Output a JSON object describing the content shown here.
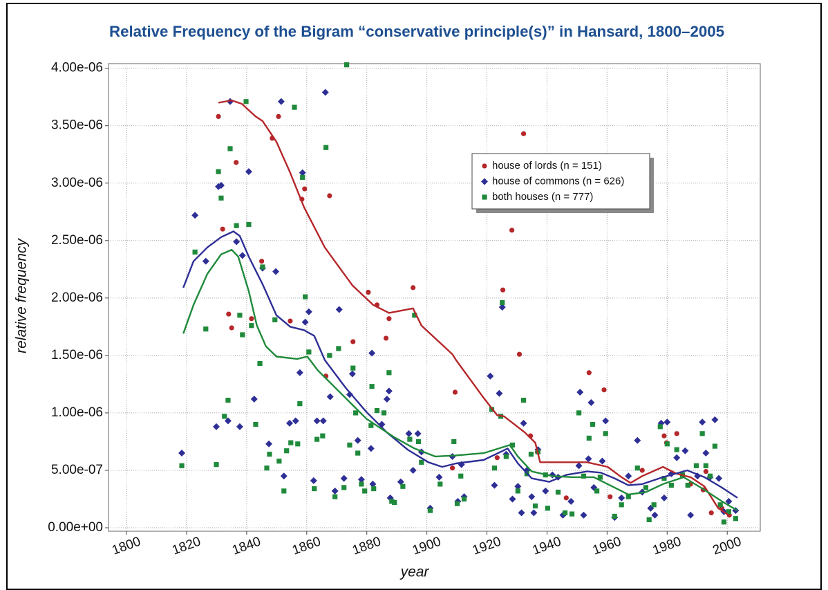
{
  "chart_data": {
    "type": "scatter",
    "title": "Relative Frequency of the Bigram “conservative principle(s)” in Hansard, 1800–2005",
    "xlabel": "year",
    "ylabel": "relative frequency",
    "xlim": [
      1794,
      2011
    ],
    "ylim": [
      -3e-08,
      4.04e-06
    ],
    "xticks": [
      1800,
      1820,
      1840,
      1860,
      1880,
      1900,
      1920,
      1940,
      1960,
      1980,
      2000
    ],
    "yticks": [
      {
        "value": 0,
        "label": "0.00e+00"
      },
      {
        "value": 5e-07,
        "label": "5.00e-07"
      },
      {
        "value": 1e-06,
        "label": "1.00e-06"
      },
      {
        "value": 1.5e-06,
        "label": "1.50e-06"
      },
      {
        "value": 2e-06,
        "label": "2.00e-06"
      },
      {
        "value": 2.5e-06,
        "label": "2.50e-06"
      },
      {
        "value": 3e-06,
        "label": "3.00e-06"
      },
      {
        "value": 3.5e-06,
        "label": "3.50e-06"
      },
      {
        "value": 4e-06,
        "label": "4.00e-06"
      }
    ],
    "grid": true,
    "series": [
      {
        "name": "house of lords (n = 151)",
        "color": "#b5272a",
        "marker": "circle",
        "x": [
          1830.6,
          1832,
          1834,
          1835,
          1836.5,
          1841.6,
          1845,
          1848.5,
          1850.6,
          1854.5,
          1858.4,
          1859.3,
          1866.4,
          1867.6,
          1875.4,
          1880.5,
          1883.4,
          1886.4,
          1887.4,
          1895.4,
          1908.5,
          1909.4,
          1923.4,
          1925.3,
          1928.3,
          1930.8,
          1932.2,
          1934.5,
          1936.8,
          1946.4,
          1954,
          1959,
          1961,
          1971.7,
          1979,
          1979.8,
          1983.2,
          1987.8,
          1992,
          1992.9,
          1994.7,
          1998.2,
          2000.7
        ],
        "values": [
          3.58e-06,
          2.6e-06,
          1.86e-06,
          1.74e-06,
          3.18e-06,
          1.82e-06,
          2.32e-06,
          3.39e-06,
          3.58e-06,
          1.8e-06,
          2.86e-06,
          2.95e-06,
          1.32e-06,
          2.89e-06,
          1.62e-06,
          2.05e-06,
          1.94e-06,
          1.65e-06,
          1.82e-06,
          2.09e-06,
          5.2e-07,
          1.18e-06,
          6.1e-07,
          2.07e-06,
          2.59e-06,
          1.51e-06,
          3.43e-06,
          8e-07,
          6.6e-07,
          2.6e-07,
          1.35e-06,
          1.2e-06,
          2.7e-07,
          5e-07,
          8e-07,
          7.4e-07,
          8.2e-07,
          3.8e-07,
          3.3e-07,
          4.9e-07,
          1.3e-07,
          1.7e-07,
          1.1e-07
        ],
        "trend": {
          "x": [
            1830.6,
            1835,
            1838.4,
            1843,
            1845.3,
            1849.9,
            1854.5,
            1859.1,
            1866,
            1875.2,
            1882.1,
            1887.4,
            1895.4,
            1898.2,
            1908.5,
            1909.7,
            1918.9,
            1923.4,
            1925.7,
            1932.6,
            1936.1,
            1937.7,
            1941.8,
            1953.3,
            1960.2,
            1964.8,
            1967.8,
            1971.7,
            1978.6,
            1983.2,
            1987.8,
            1992.4,
            1997,
            2000.5
          ],
          "values": [
            3.7e-06,
            3.72e-06,
            3.69e-06,
            3.58e-06,
            3.54e-06,
            3.36e-06,
            3.09e-06,
            2.79e-06,
            2.44e-06,
            2.11e-06,
            1.94e-06,
            1.87e-06,
            1.91e-06,
            1.76e-06,
            1.51e-06,
            1.46e-06,
            1.13e-06,
            9.8e-07,
            9.7e-07,
            8.3e-07,
            7.4e-07,
            5.7e-07,
            5.7e-07,
            5.7e-07,
            5.3e-07,
            4.4e-07,
            3.9e-07,
            4.5e-07,
            5.3e-07,
            4.7e-07,
            4.4e-07,
            3.6e-07,
            1.7e-07,
            1.1e-07
          ]
        }
      },
      {
        "name": "house of commons (n = 626)",
        "color": "#2e2f95",
        "marker": "diamond",
        "x": [
          1818.4,
          1822.8,
          1826.4,
          1829.9,
          1830.6,
          1831.5,
          1833.8,
          1834.5,
          1836.6,
          1837.7,
          1838.6,
          1840.7,
          1842.5,
          1845.3,
          1847.4,
          1849.7,
          1851.5,
          1852.4,
          1854.3,
          1856.3,
          1857.7,
          1858.6,
          1859.5,
          1860.7,
          1862.3,
          1863.4,
          1865.5,
          1866.2,
          1867.8,
          1869.4,
          1870.8,
          1872.4,
          1874.3,
          1875.2,
          1877.0,
          1878.2,
          1881.4,
          1881.7,
          1882,
          1885,
          1886.7,
          1887.4,
          1887.8,
          1891.3,
          1894,
          1895.4,
          1897,
          1898.2,
          1901.1,
          1904.1,
          1908.5,
          1910.3,
          1911.5,
          1912.4,
          1921.1,
          1922.5,
          1924.1,
          1925.1,
          1926.4,
          1928.5,
          1930.3,
          1931.5,
          1932.2,
          1933.3,
          1934.9,
          1935.6,
          1937,
          1939.5,
          1941.8,
          1943.7,
          1945.3,
          1948,
          1950.6,
          1951,
          1952.2,
          1953.8,
          1954.7,
          1955.6,
          1958.4,
          1959.5,
          1962.5,
          1964.8,
          1967.1,
          1970.1,
          1971.7,
          1974.5,
          1975.9,
          1978,
          1979,
          1980,
          1981.4,
          1983.2,
          1986,
          1987.8,
          1990.1,
          1991.7,
          1992.9,
          1994.3,
          1995.9,
          1997.2,
          1998.9,
          2000.5,
          2002.8
        ],
        "values": [
          6.5e-07,
          2.72e-06,
          2.32e-06,
          8.8e-07,
          2.97e-06,
          2.98e-06,
          9.3e-07,
          3.71e-06,
          2.49e-06,
          8.8e-07,
          2.37e-06,
          3.1e-06,
          1.12e-06,
          2.26e-06,
          7.3e-07,
          2.23e-06,
          3.71e-06,
          4.5e-07,
          9.1e-07,
          9.3e-07,
          1.35e-06,
          3.09e-06,
          1.79e-06,
          1.88e-06,
          4.1e-07,
          9.3e-07,
          9.3e-07,
          3.79e-06,
          1.14e-06,
          3.2e-07,
          1.9e-06,
          4.3e-07,
          1.16e-06,
          1.34e-06,
          7.6e-07,
          4.2e-07,
          6.9e-07,
          1.52e-06,
          3.8e-07,
          9e-07,
          1.12e-06,
          1.19e-06,
          2.6e-07,
          4e-07,
          8.2e-07,
          5e-07,
          8.2e-07,
          6.6e-07,
          1.7e-07,
          4.4e-07,
          6.2e-07,
          2.3e-07,
          5.5e-07,
          2.7e-07,
          1.32e-06,
          3.7e-07,
          1.17e-06,
          1.92e-06,
          6.4e-07,
          2.5e-07,
          3.6e-07,
          1.3e-07,
          9.1e-07,
          5e-07,
          2.7e-07,
          1.3e-07,
          6.8e-07,
          3.2e-07,
          4.6e-07,
          4.4e-07,
          1.1e-07,
          2.3e-07,
          5.4e-07,
          1.18e-06,
          1.1e-07,
          6e-07,
          1.09e-06,
          3.5e-07,
          5.8e-07,
          9.3e-07,
          9e-08,
          2.6e-07,
          4.5e-07,
          7.6e-07,
          3.1e-07,
          1.7e-07,
          1.1e-07,
          9.1e-07,
          2.6e-07,
          9.2e-07,
          4.7e-07,
          6.1e-07,
          6.7e-07,
          1.1e-07,
          4.5e-07,
          9.2e-07,
          6.5e-07,
          4.4e-07,
          9.4e-07,
          4.3e-07,
          1.4e-07,
          2.3e-07,
          1.5e-07
        ],
        "trend": {
          "x": [
            1818.9,
            1822.3,
            1826.9,
            1831.5,
            1835.6,
            1837.7,
            1840.7,
            1845.3,
            1849.9,
            1854.5,
            1859.1,
            1862.5,
            1866,
            1872.9,
            1879.8,
            1886.7,
            1893.6,
            1900.5,
            1905.1,
            1909.7,
            1918.9,
            1926.9,
            1930.3,
            1934.9,
            1940.7,
            1946.4,
            1953.3,
            1957.9,
            1962.5,
            1967.1,
            1971.7,
            1978.6,
            1986.7,
            1992.4,
            1998.2,
            2003.4
          ],
          "values": [
            2.09e-06,
            2.32e-06,
            2.44e-06,
            2.53e-06,
            2.58e-06,
            2.54e-06,
            2.36e-06,
            2.12e-06,
            1.85e-06,
            1.75e-06,
            1.72e-06,
            1.67e-06,
            1.46e-06,
            1.22e-06,
            1.01e-06,
            8.3e-07,
            6.8e-07,
            5.7e-07,
            5.3e-07,
            5.6e-07,
            5.9e-07,
            6.9e-07,
            5.6e-07,
            4.3e-07,
            4e-07,
            4.6e-07,
            4.9e-07,
            4.8e-07,
            4.3e-07,
            3.7e-07,
            3.8e-07,
            4.4e-07,
            5e-07,
            4.4e-07,
            3.5e-07,
            2.6e-07
          ]
        }
      },
      {
        "name": "both houses (n = 777)",
        "color": "#1f8a3b",
        "marker": "square",
        "x": [
          1818.4,
          1822.8,
          1826.4,
          1829.9,
          1830.6,
          1831.5,
          1832.6,
          1833.8,
          1834.5,
          1836.6,
          1837.7,
          1838.6,
          1839.8,
          1840.7,
          1841.6,
          1843,
          1844.4,
          1845.3,
          1846.7,
          1847.6,
          1849.4,
          1850.8,
          1852.4,
          1853.3,
          1854.7,
          1855.9,
          1857,
          1857.7,
          1858.6,
          1859.5,
          1860.7,
          1862.5,
          1863.4,
          1865.3,
          1866.4,
          1867.6,
          1869.4,
          1870.6,
          1872.4,
          1873.3,
          1874.3,
          1875.4,
          1876.3,
          1877,
          1878.2,
          1879.3,
          1881.4,
          1881.7,
          1882.3,
          1883.4,
          1885.7,
          1887.4,
          1888.3,
          1889.2,
          1892,
          1894.3,
          1895.9,
          1897.2,
          1898.2,
          1901.1,
          1904.4,
          1909,
          1910.1,
          1911.3,
          1912.4,
          1921.6,
          1922.5,
          1924.6,
          1925.1,
          1926.4,
          1928.5,
          1930.3,
          1932.2,
          1933.3,
          1934.7,
          1936.1,
          1937,
          1939.5,
          1940.2,
          1943.7,
          1946,
          1948.3,
          1950.6,
          1952.2,
          1954,
          1955.2,
          1956.6,
          1957.7,
          1959.5,
          1962.5,
          1964.8,
          1967.1,
          1970.1,
          1972.9,
          1974,
          1975.6,
          1977.7,
          1979,
          1980,
          1981.4,
          1983.2,
          1985.1,
          1986.9,
          1989.7,
          1991.7,
          1992.9,
          1994.3,
          1995.9,
          1997.7,
          1998.9,
          2000.5,
          2002.8
        ],
        "values": [
          5.4e-07,
          2.4e-06,
          1.73e-06,
          5.5e-07,
          3.1e-06,
          2.87e-06,
          9.7e-07,
          1.11e-06,
          3.3e-06,
          2.63e-06,
          1.85e-06,
          1.68e-06,
          3.71e-06,
          2.64e-06,
          1.76e-06,
          9e-07,
          1.43e-06,
          2.27e-06,
          5.2e-07,
          6.4e-07,
          1.81e-06,
          5.8e-07,
          3.2e-07,
          6.7e-07,
          7.4e-07,
          3.66e-06,
          7.3e-07,
          1.08e-06,
          3.05e-06,
          2.01e-06,
          1.53e-06,
          3.4e-07,
          7.7e-07,
          8e-07,
          3.31e-06,
          1.5e-06,
          2.7e-07,
          1.56e-06,
          3.5e-07,
          4.03e-06,
          7.2e-07,
          1.39e-06,
          1e-06,
          6.5e-07,
          3.8e-07,
          3.2e-07,
          8.9e-07,
          1.23e-06,
          3.4e-07,
          1.02e-06,
          1e-06,
          1.35e-06,
          2.3e-07,
          2.2e-07,
          3.6e-07,
          7.7e-07,
          1.85e-06,
          7.5e-07,
          5.7e-07,
          1.5e-07,
          3.8e-07,
          7.5e-07,
          2.1e-07,
          4.5e-07,
          2.5e-07,
          1.03e-06,
          5.2e-07,
          9.7e-07,
          1.96e-06,
          6.2e-07,
          7.2e-07,
          3.2e-07,
          1.11e-06,
          4.7e-07,
          6.4e-07,
          1.9e-07,
          6.6e-07,
          4.6e-07,
          1.7e-07,
          3.1e-07,
          1.3e-07,
          1.2e-07,
          1e-06,
          4.5e-07,
          7.8e-07,
          9e-07,
          3.2e-07,
          4.4e-07,
          8.2e-07,
          1e-07,
          2e-07,
          2.7e-07,
          5.2e-07,
          3.5e-07,
          7e-08,
          2e-07,
          8.8e-07,
          4.3e-07,
          7.3e-07,
          3.7e-07,
          6.8e-07,
          4.6e-07,
          3.7e-07,
          5.4e-07,
          8.2e-07,
          5.4e-07,
          4.5e-07,
          7.1e-07,
          2e-07,
          5e-08,
          1.4e-07,
          8e-08
        ],
        "trend": {
          "x": [
            1818.9,
            1822.3,
            1826.9,
            1831.5,
            1835,
            1837.2,
            1840.7,
            1843.4,
            1846.4,
            1849.9,
            1856.8,
            1860.2,
            1863.7,
            1872.9,
            1879.8,
            1889,
            1895.9,
            1902.8,
            1909.7,
            1918.9,
            1927.6,
            1930.3,
            1934.9,
            1941.8,
            1948.7,
            1955.6,
            1960.2,
            1967.1,
            1972.9,
            1978.6,
            1985.5,
            1992.4,
            1998.2,
            2003.4
          ],
          "values": [
            1.69e-06,
            1.94e-06,
            2.21e-06,
            2.38e-06,
            2.42e-06,
            2.36e-06,
            2.06e-06,
            1.76e-06,
            1.58e-06,
            1.49e-06,
            1.47e-06,
            1.49e-06,
            1.37e-06,
            1.13e-06,
            9.5e-07,
            7.9e-07,
            6.9e-07,
            6.2e-07,
            6.3e-07,
            6.5e-07,
            7.2e-07,
            6.2e-07,
            4.9e-07,
            4.5e-07,
            4.4e-07,
            4.4e-07,
            3.8e-07,
            2.9e-07,
            3.1e-07,
            3.8e-07,
            4.4e-07,
            3.3e-07,
            2.3e-07,
            1.5e-07
          ]
        }
      }
    ]
  }
}
